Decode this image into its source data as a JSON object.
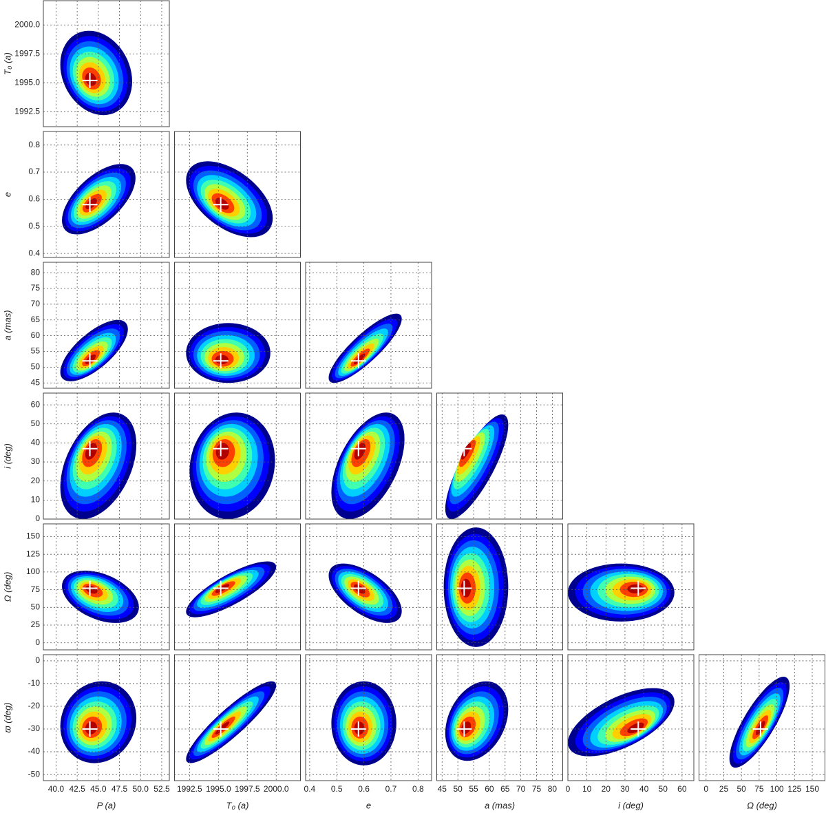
{
  "chart_data": {
    "type": "corner",
    "colormap": [
      "#00008f",
      "#0000ff",
      "#0060ff",
      "#00d0ff",
      "#40ffb0",
      "#b0ff40",
      "#ffd000",
      "#ff4000",
      "#b00000"
    ],
    "axes": [
      {
        "label": "P (a)",
        "lim": [
          38.5,
          53.4
        ],
        "ticks": [
          {
            "value": 40,
            "label": "40.0"
          },
          42.5,
          {
            "value": 45,
            "label": "45.0"
          },
          47.5,
          {
            "value": 50,
            "label": "50.0"
          },
          52.5
        ],
        "best": 44.0
      },
      {
        "label": "T₀ (a)",
        "lim": [
          1991.2,
          2002.1
        ],
        "ticks": [
          1992.5,
          {
            "value": 1995,
            "label": "1995.0"
          },
          1997.5,
          {
            "value": 2000,
            "label": "2000.0"
          }
        ],
        "best": 1995.2
      },
      {
        "label": "e",
        "lim": [
          0.385,
          0.85
        ],
        "ticks": [
          0.4,
          0.5,
          0.6,
          0.7,
          0.8
        ],
        "best": 0.58
      },
      {
        "label": "a (mas)",
        "lim": [
          43.3,
          83.3
        ],
        "ticks": [
          45,
          50,
          55,
          60,
          65,
          70,
          75,
          80
        ],
        "best": 52
      },
      {
        "label": "i (deg)",
        "lim": [
          0,
          66.2
        ],
        "ticks": [
          0,
          10,
          20,
          30,
          40,
          50,
          60
        ],
        "best": 37
      },
      {
        "label": "Ω (deg)",
        "lim": [
          -10,
          168
        ],
        "ticks": [
          0,
          25,
          50,
          75,
          100,
          125,
          150
        ],
        "best": 77
      },
      {
        "label": "ϖ (deg)",
        "lim": [
          -52.7,
          2.7
        ],
        "ticks": [
          -50,
          -40,
          -30,
          -20,
          -10,
          0
        ],
        "best": -30
      }
    ],
    "panels": [
      {
        "extent_x": [
          40.5,
          49
        ],
        "extent_y": [
          1992.2,
          1999.5
        ],
        "corr": -0.2
      },
      {
        "extent_x": [
          40.7,
          49.4
        ],
        "extent_y": [
          0.47,
          0.73
        ],
        "corr": 0.6
      },
      {
        "extent_x": [
          1992.2,
          1999.7
        ],
        "extent_y": [
          0.46,
          0.74
        ],
        "corr": -0.5
      },
      {
        "extent_x": [
          40.5,
          48.5
        ],
        "extent_y": [
          45.5,
          65
        ],
        "corr": 0.7
      },
      {
        "extent_x": [
          1992.2,
          1999.5
        ],
        "extent_y": [
          45,
          64
        ],
        "corr": 0
      },
      {
        "extent_x": [
          0.47,
          0.74
        ],
        "extent_y": [
          45,
          67
        ],
        "corr": 0.85
      },
      {
        "extent_x": [
          40.5,
          49.5
        ],
        "extent_y": [
          0,
          56
        ],
        "corr": 0.4
      },
      {
        "extent_x": [
          1992.5,
          1999.9
        ],
        "extent_y": [
          0,
          56
        ],
        "corr": 0.1
      },
      {
        "extent_x": [
          0.48,
          0.75
        ],
        "extent_y": [
          0,
          56
        ],
        "corr": 0.5
      },
      {
        "extent_x": [
          46,
          66
        ],
        "extent_y": [
          0,
          55
        ],
        "corr": 0.8
      },
      {
        "extent_x": [
          40.7,
          49.8
        ],
        "extent_y": [
          28,
          102
        ],
        "corr": -0.4
      },
      {
        "extent_x": [
          1992.2,
          2000
        ],
        "extent_y": [
          36,
          115
        ],
        "corr": 0.8
      },
      {
        "extent_x": [
          0.47,
          0.74
        ],
        "extent_y": [
          28,
          112
        ],
        "corr": -0.6
      },
      {
        "extent_x": [
          45.5,
          66
        ],
        "extent_y": [
          -6,
          163
        ],
        "corr": 0
      },
      {
        "extent_x": [
          0,
          56
        ],
        "extent_y": [
          30,
          112
        ],
        "corr": 0
      },
      {
        "extent_x": [
          40.5,
          49.5
        ],
        "extent_y": [
          -45,
          -9
        ],
        "corr": 0.1
      },
      {
        "extent_x": [
          1992.2,
          2000
        ],
        "extent_y": [
          -45,
          -9
        ],
        "corr": 0.9
      },
      {
        "extent_x": [
          0.48,
          0.72
        ],
        "extent_y": [
          -46,
          -9
        ],
        "corr": 0
      },
      {
        "extent_x": [
          46,
          66
        ],
        "extent_y": [
          -44,
          -9
        ],
        "corr": 0.3
      },
      {
        "extent_x": [
          0,
          56
        ],
        "extent_y": [
          -42,
          -12
        ],
        "corr": 0.6
      },
      {
        "extent_x": [
          33,
          118
        ],
        "extent_y": [
          -47,
          -7
        ],
        "corr": 0.8
      }
    ]
  }
}
